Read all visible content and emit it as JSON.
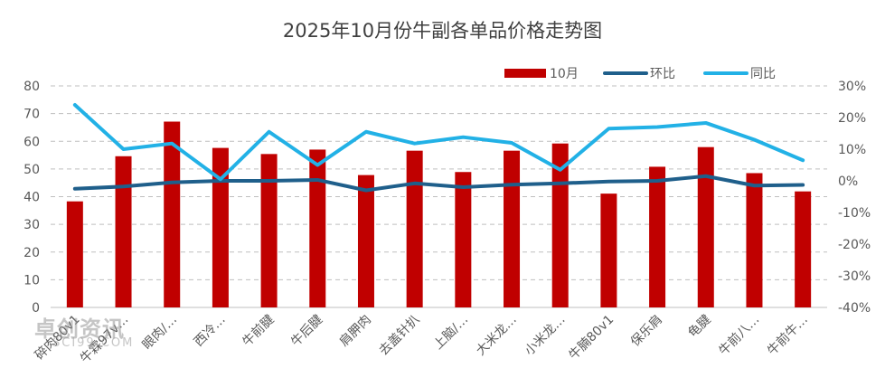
{
  "chart_data": {
    "type": "bar",
    "title": "2025年10月份牛副各单品价格走势图",
    "categories": [
      "碎肉80v1",
      "牛霖97v…",
      "眼肉/…",
      "西冷…",
      "牛前腱",
      "牛后腱",
      "肩胛肉",
      "去盖针扒",
      "上脑/…",
      "大米龙…",
      "小米龙…",
      "牛腩80v1",
      "保乐肩",
      "龟腱",
      "牛前八…",
      "牛前牛…"
    ],
    "series": [
      {
        "name": "10月",
        "type": "bar",
        "axis": "left",
        "color": "#C00000",
        "values": [
          38.3,
          54.6,
          67.1,
          57.6,
          55.4,
          57.0,
          47.8,
          56.6,
          48.9,
          56.6,
          59.2,
          41.1,
          50.8,
          57.9,
          48.5,
          41.9
        ]
      },
      {
        "name": "环比",
        "type": "line",
        "axis": "right",
        "color": "#1F5F8B",
        "values": [
          -2.5,
          -1.8,
          -0.5,
          0.0,
          0.0,
          0.3,
          -3.0,
          -0.8,
          -2.0,
          -1.2,
          -0.8,
          -0.2,
          0.0,
          1.5,
          -1.5,
          -1.3
        ]
      },
      {
        "name": "同比",
        "type": "line",
        "axis": "right",
        "color": "#22B1E6",
        "values": [
          24.0,
          10.0,
          11.8,
          0.5,
          15.5,
          5.0,
          15.5,
          11.8,
          13.8,
          12.0,
          3.5,
          16.5,
          17.0,
          18.3,
          13.0,
          6.5
        ]
      }
    ],
    "y_left": {
      "ylim": [
        0,
        80
      ],
      "ticks": [
        0,
        10,
        20,
        30,
        40,
        50,
        60,
        70,
        80
      ]
    },
    "y_right": {
      "ylim": [
        -40,
        30
      ],
      "ticks": [
        "-40%",
        "-30%",
        "-20%",
        "-10%",
        "0%",
        "10%",
        "20%",
        "30%"
      ]
    },
    "grid": true,
    "legend_position": "top-right"
  },
  "watermark": {
    "main": "卓创资讯",
    "sub": "SCI99.COM"
  }
}
